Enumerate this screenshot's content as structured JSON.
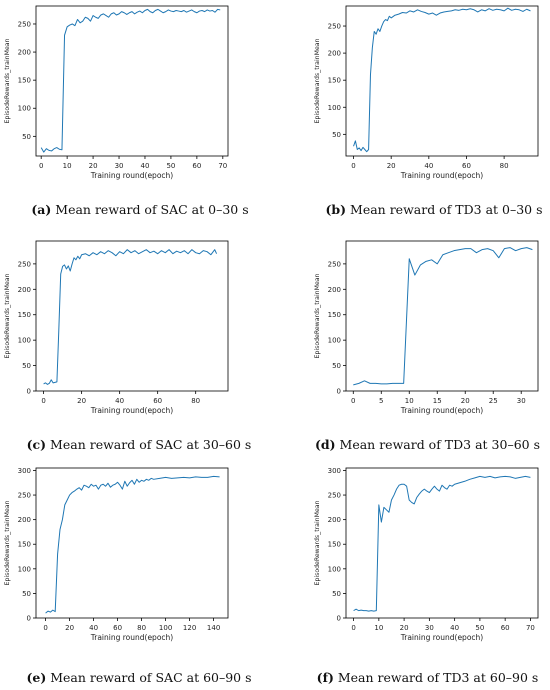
{
  "colors": {
    "line": "#1f77b4",
    "axis": "#000000"
  },
  "chart_data": [
    {
      "type": "line",
      "xlabel": "Training round(epoch)",
      "ylabel": "EpisodeRewards_trainMean",
      "xlim": [
        -2,
        72
      ],
      "ylim": [
        15,
        282
      ],
      "xticks": [
        0,
        10,
        20,
        30,
        40,
        50,
        60,
        70
      ],
      "yticks": [
        50,
        100,
        150,
        200,
        250
      ],
      "caption_letter": "(a)",
      "caption_text": " Mean reward of SAC at 0–30 s",
      "x": [
        0,
        1,
        2,
        3,
        4,
        5,
        6,
        7,
        8,
        9,
        10,
        11,
        12,
        13,
        14,
        15,
        16,
        17,
        18,
        19,
        20,
        21,
        22,
        23,
        24,
        25,
        26,
        27,
        28,
        29,
        30,
        31,
        32,
        33,
        34,
        35,
        36,
        37,
        38,
        39,
        40,
        41,
        42,
        43,
        44,
        45,
        46,
        47,
        48,
        49,
        50,
        51,
        52,
        53,
        54,
        55,
        56,
        57,
        58,
        59,
        60,
        61,
        62,
        63,
        64,
        65,
        66,
        67,
        68,
        69
      ],
      "y": [
        30,
        22,
        28,
        25,
        24,
        28,
        30,
        27,
        26,
        230,
        245,
        248,
        250,
        247,
        258,
        252,
        255,
        262,
        260,
        255,
        265,
        262,
        260,
        266,
        268,
        265,
        262,
        268,
        270,
        266,
        268,
        272,
        270,
        267,
        270,
        272,
        268,
        271,
        273,
        270,
        274,
        276,
        272,
        270,
        274,
        276,
        273,
        270,
        272,
        275,
        273,
        272,
        274,
        273,
        272,
        274,
        271,
        273,
        275,
        272,
        270,
        273,
        274,
        272,
        275,
        273,
        274,
        271,
        276,
        275
      ]
    },
    {
      "type": "line",
      "xlabel": "Training round(epoch)",
      "ylabel": "EpisodeRewards_trainMean",
      "xlim": [
        -4,
        98
      ],
      "ylim": [
        10,
        287
      ],
      "xticks": [
        0,
        20,
        40,
        60,
        80
      ],
      "yticks": [
        50,
        100,
        150,
        200,
        250
      ],
      "caption_letter": "(b)",
      "caption_text": " Mean reward of TD3 at 0–30 s",
      "x": [
        0,
        1,
        2,
        3,
        4,
        5,
        6,
        7,
        8,
        9,
        10,
        11,
        12,
        13,
        14,
        15,
        16,
        17,
        18,
        19,
        20,
        22,
        24,
        26,
        28,
        30,
        32,
        34,
        36,
        38,
        40,
        42,
        44,
        46,
        48,
        50,
        52,
        54,
        56,
        58,
        60,
        62,
        64,
        66,
        68,
        70,
        72,
        74,
        76,
        78,
        80,
        82,
        84,
        86,
        88,
        90,
        92,
        94
      ],
      "y": [
        28,
        38,
        22,
        25,
        20,
        26,
        22,
        18,
        22,
        160,
        210,
        240,
        235,
        245,
        240,
        250,
        258,
        262,
        260,
        268,
        265,
        270,
        272,
        275,
        274,
        278,
        276,
        280,
        277,
        275,
        272,
        274,
        270,
        274,
        276,
        277,
        278,
        280,
        279,
        281,
        280,
        282,
        280,
        276,
        280,
        278,
        282,
        279,
        281,
        280,
        278,
        283,
        279,
        281,
        280,
        277,
        281,
        278
      ]
    },
    {
      "type": "line",
      "xlabel": "Training round(epoch)",
      "ylabel": "EpisodeRewards_trainMean",
      "xlim": [
        -4,
        97
      ],
      "ylim": [
        0,
        295
      ],
      "xticks": [
        0,
        20,
        40,
        60,
        80
      ],
      "yticks": [
        0,
        50,
        100,
        150,
        200,
        250
      ],
      "caption_letter": "(c)",
      "caption_text": " Mean reward of SAC at 30–60 s",
      "x": [
        0,
        1,
        2,
        3,
        4,
        5,
        6,
        7,
        8,
        9,
        10,
        11,
        12,
        13,
        14,
        15,
        16,
        17,
        18,
        19,
        20,
        22,
        24,
        26,
        28,
        30,
        32,
        34,
        36,
        38,
        40,
        42,
        44,
        46,
        48,
        50,
        52,
        54,
        56,
        58,
        60,
        62,
        64,
        66,
        68,
        70,
        72,
        74,
        76,
        78,
        80,
        82,
        84,
        86,
        88,
        90,
        91
      ],
      "y": [
        14,
        16,
        13,
        15,
        22,
        16,
        17,
        18,
        120,
        230,
        245,
        248,
        240,
        246,
        236,
        250,
        262,
        258,
        265,
        260,
        268,
        270,
        266,
        272,
        268,
        274,
        270,
        276,
        272,
        266,
        274,
        270,
        278,
        272,
        276,
        270,
        274,
        278,
        272,
        275,
        270,
        276,
        272,
        278,
        270,
        275,
        272,
        276,
        270,
        278,
        272,
        270,
        276,
        274,
        268,
        278,
        270
      ]
    },
    {
      "type": "line",
      "xlabel": "Training round(epoch)",
      "ylabel": "EpisodeRewards_trainMean",
      "xlim": [
        -1.3,
        33
      ],
      "ylim": [
        0,
        295
      ],
      "xticks": [
        0,
        5,
        10,
        15,
        20,
        25,
        30
      ],
      "yticks": [
        0,
        50,
        100,
        150,
        200,
        250
      ],
      "caption_letter": "(d)",
      "caption_text": " Mean reward of TD3 at 30–60 s",
      "x": [
        0,
        1,
        2,
        3,
        4,
        5,
        6,
        7,
        8,
        9,
        10,
        11,
        12,
        13,
        14,
        15,
        16,
        17,
        18,
        19,
        20,
        21,
        22,
        23,
        24,
        25,
        26,
        27,
        28,
        29,
        30,
        31,
        32
      ],
      "y": [
        12,
        15,
        20,
        15,
        15,
        14,
        14,
        15,
        15,
        15,
        260,
        228,
        248,
        255,
        258,
        250,
        268,
        272,
        276,
        278,
        280,
        280,
        272,
        278,
        280,
        276,
        262,
        280,
        282,
        276,
        280,
        282,
        278
      ]
    },
    {
      "type": "line",
      "xlabel": "Training round(epoch)",
      "ylabel": "EpisodeRewards_trainMean",
      "xlim": [
        -8,
        152
      ],
      "ylim": [
        0,
        305
      ],
      "xticks": [
        0,
        20,
        40,
        60,
        80,
        100,
        120,
        140
      ],
      "yticks": [
        0,
        50,
        100,
        150,
        200,
        250,
        300
      ],
      "caption_letter": "(e)",
      "caption_text": " Mean reward of SAC at 60–90 s",
      "x": [
        0,
        2,
        4,
        6,
        8,
        10,
        12,
        14,
        16,
        18,
        20,
        22,
        24,
        26,
        28,
        30,
        32,
        34,
        36,
        38,
        40,
        42,
        44,
        46,
        48,
        50,
        52,
        54,
        56,
        58,
        60,
        62,
        64,
        66,
        68,
        70,
        72,
        74,
        76,
        78,
        80,
        82,
        84,
        86,
        88,
        90,
        95,
        100,
        105,
        110,
        115,
        120,
        125,
        130,
        135,
        140,
        145
      ],
      "y": [
        10,
        14,
        12,
        16,
        13,
        130,
        180,
        200,
        230,
        240,
        250,
        255,
        258,
        262,
        265,
        260,
        270,
        268,
        265,
        272,
        268,
        270,
        262,
        270,
        272,
        268,
        274,
        266,
        270,
        272,
        276,
        270,
        262,
        278,
        268,
        275,
        280,
        272,
        282,
        276,
        280,
        278,
        282,
        280,
        284,
        282,
        284,
        286,
        284,
        285,
        286,
        285,
        287,
        286,
        286,
        288,
        287
      ]
    },
    {
      "type": "line",
      "xlabel": "Training round(epoch)",
      "ylabel": "EpisodeRewards_trainMean",
      "xlim": [
        -3,
        73
      ],
      "ylim": [
        0,
        305
      ],
      "xticks": [
        0,
        10,
        20,
        30,
        40,
        50,
        60,
        70
      ],
      "yticks": [
        0,
        50,
        100,
        150,
        200,
        250,
        300
      ],
      "caption_letter": "(f)",
      "caption_text": " Mean reward of TD3 at 60–90 s",
      "x": [
        0,
        1,
        2,
        3,
        4,
        5,
        6,
        7,
        8,
        9,
        10,
        11,
        12,
        13,
        14,
        15,
        16,
        17,
        18,
        19,
        20,
        21,
        22,
        23,
        24,
        25,
        26,
        27,
        28,
        29,
        30,
        31,
        32,
        33,
        34,
        35,
        36,
        37,
        38,
        39,
        40,
        42,
        44,
        46,
        48,
        50,
        52,
        54,
        56,
        58,
        60,
        62,
        64,
        66,
        68,
        70
      ],
      "y": [
        15,
        18,
        15,
        16,
        15,
        15,
        14,
        15,
        14,
        15,
        230,
        195,
        225,
        220,
        215,
        240,
        250,
        262,
        270,
        272,
        272,
        268,
        240,
        235,
        232,
        245,
        252,
        258,
        262,
        258,
        255,
        262,
        268,
        262,
        258,
        270,
        265,
        262,
        270,
        268,
        272,
        275,
        278,
        282,
        285,
        288,
        286,
        288,
        285,
        287,
        288,
        287,
        284,
        286,
        288,
        286
      ]
    }
  ]
}
